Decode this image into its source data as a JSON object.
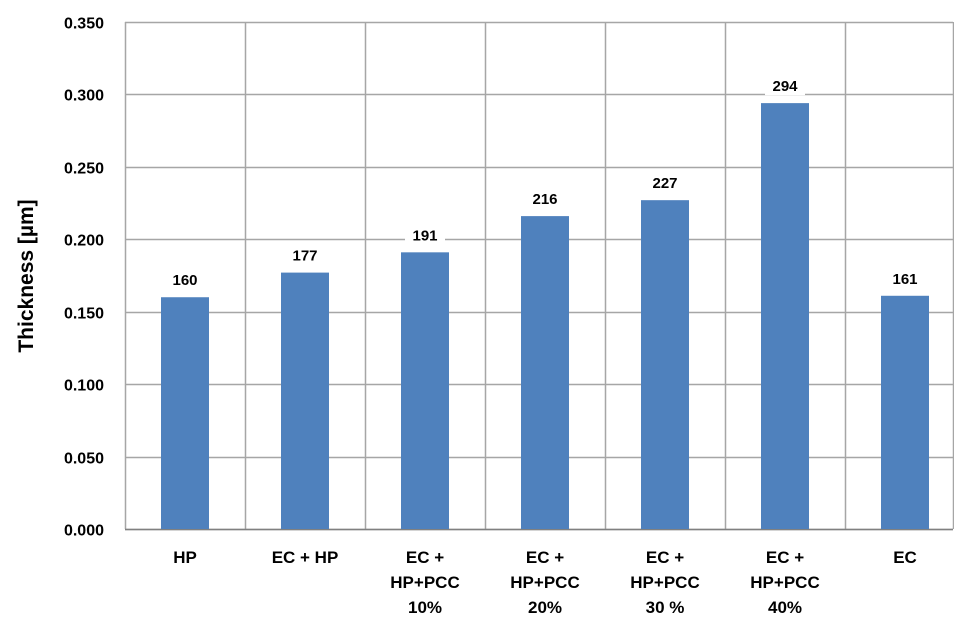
{
  "chart_data": {
    "type": "bar",
    "title": "",
    "xlabel": "",
    "ylabel": "Thickness [µm]",
    "ylim": [
      0,
      0.35
    ],
    "yticks": [
      "0.000",
      "0.050",
      "0.100",
      "0.150",
      "0.200",
      "0.250",
      "0.300",
      "0.350"
    ],
    "grid": true,
    "categories": [
      [
        "HP"
      ],
      [
        "EC + HP"
      ],
      [
        "EC +",
        "HP+PCC",
        "10%"
      ],
      [
        "EC +",
        "HP+PCC",
        "20%"
      ],
      [
        "EC +",
        "HP+PCC",
        "30 %"
      ],
      [
        "EC +",
        "HP+PCC",
        "40%"
      ],
      [
        "EC"
      ]
    ],
    "values": [
      0.16,
      0.177,
      0.191,
      0.216,
      0.227,
      0.294,
      0.161
    ],
    "data_labels": [
      "160",
      "177",
      "191",
      "216",
      "227",
      "294",
      "161"
    ],
    "bar_color": "#4f81bd",
    "grid_color": "#a6a6a6"
  }
}
